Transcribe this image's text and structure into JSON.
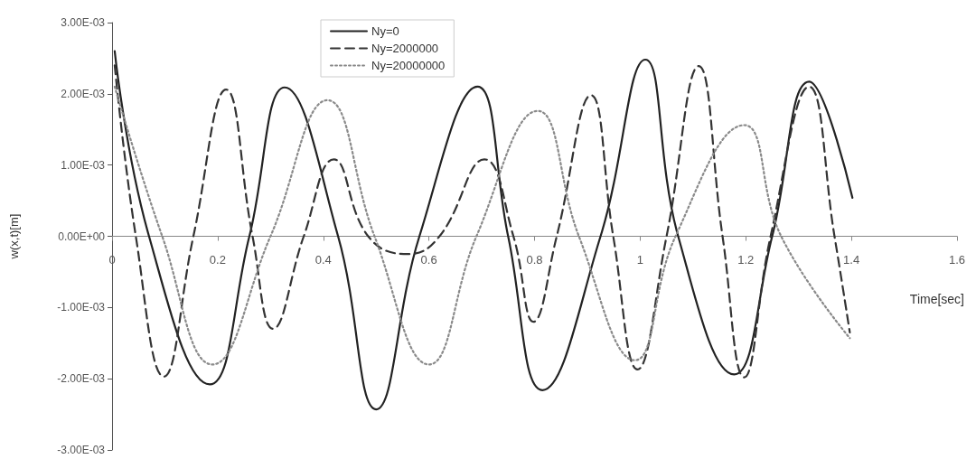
{
  "chart_data": {
    "type": "line",
    "xlabel": "Time[sec]",
    "ylabel": "w(x,t)[m]",
    "xlim": [
      0,
      1.6
    ],
    "xticks": [
      0,
      0.2,
      0.4,
      0.6,
      0.8,
      1,
      1.2,
      1.4,
      1.6
    ],
    "ylim": [
      -0.003,
      0.003
    ],
    "yticks": [
      {
        "value": -0.003,
        "label": "-3.00E-03"
      },
      {
        "value": -0.002,
        "label": "-2.00E-03"
      },
      {
        "value": -0.001,
        "label": "-1.00E-03"
      },
      {
        "value": 0,
        "label": "0.00E+00"
      },
      {
        "value": 0.001,
        "label": "1.00E-03"
      },
      {
        "value": 0.002,
        "label": "2.00E-03"
      },
      {
        "value": 0.003,
        "label": "3.00E-03"
      }
    ],
    "grid": false,
    "legend": "top",
    "marker": "none",
    "series": [
      {
        "name": "Ny=0",
        "color": "#222222",
        "line_style": "solid",
        "x": [
          0.005,
          0.07,
          0.185,
          0.26,
          0.327,
          0.428,
          0.5,
          0.582,
          0.692,
          0.75,
          0.815,
          0.925,
          1.01,
          1.072,
          1.178,
          1.25,
          1.32,
          1.402
        ],
        "values": [
          0.0026,
          0,
          -0.00208,
          0,
          0.00209,
          0,
          -0.00243,
          0,
          0.0021,
          0,
          -0.00216,
          0,
          0.00248,
          0,
          -0.00194,
          0,
          0.00217,
          0.00054
        ]
      },
      {
        "name": "Ny=2000000",
        "color": "#333333",
        "line_style": "dashed",
        "x": [
          0.005,
          0.045,
          0.098,
          0.154,
          0.216,
          0.266,
          0.305,
          0.363,
          0.42,
          0.485,
          0.56,
          0.62,
          0.705,
          0.76,
          0.798,
          0.842,
          0.907,
          0.949,
          0.995,
          1.05,
          1.111,
          1.156,
          1.197,
          1.247,
          1.32,
          1.368,
          1.397
        ],
        "values": [
          0.0024,
          0,
          -0.00197,
          0,
          0.00206,
          0,
          -0.0013,
          0,
          0.00108,
          0,
          -0.00025,
          0,
          0.00108,
          0,
          -0.0012,
          0,
          0.00198,
          0,
          -0.00187,
          0,
          0.00239,
          0,
          -0.00198,
          0,
          0.0021,
          0,
          -0.00135
        ]
      },
      {
        "name": "Ny=20000000",
        "color": "#8a8a8a",
        "line_style": "dotted",
        "x": [
          0.005,
          0.095,
          0.19,
          0.3,
          0.408,
          0.497,
          0.6,
          0.69,
          0.806,
          0.884,
          0.99,
          1.067,
          1.197,
          1.267,
          1.397
        ],
        "values": [
          0.0021,
          0,
          -0.0018,
          0,
          0.00191,
          0,
          -0.0018,
          0,
          0.00176,
          0,
          -0.00174,
          0,
          0.00156,
          0,
          -0.00143
        ]
      }
    ]
  }
}
